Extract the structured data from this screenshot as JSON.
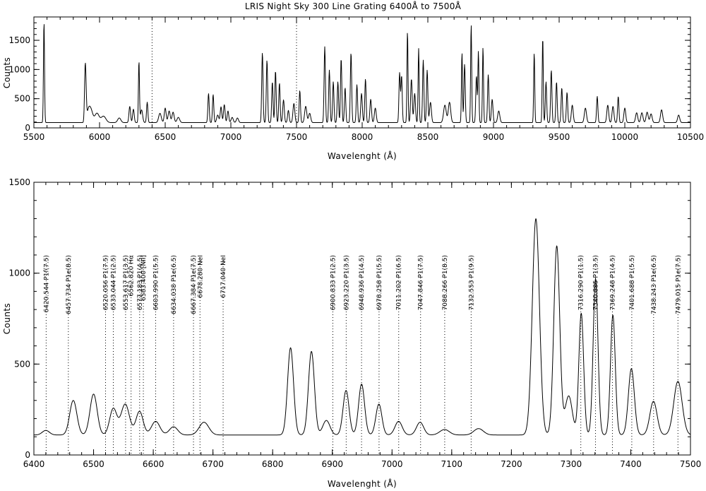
{
  "chart_data": [
    {
      "type": "line",
      "title": "LRIS Night Sky 300 Line Grating 6400Å to 7500Å",
      "xlabel": "Wavelenght (Å)",
      "ylabel": "Counts",
      "xlim": [
        5500,
        10500
      ],
      "ylim": [
        0,
        1900
      ],
      "xticks": [
        5500,
        6000,
        6500,
        7000,
        7500,
        8000,
        8500,
        9000,
        9500,
        10000,
        10500
      ],
      "yticks": [
        0,
        500,
        1000,
        1500
      ],
      "grid": false,
      "baseline": 90,
      "series_peaks": [
        [
          5577,
          1730,
          4
        ],
        [
          5890,
          780,
          5
        ],
        [
          5896,
          380,
          5
        ],
        [
          5915,
          180,
          12
        ],
        [
          5935,
          200,
          14
        ],
        [
          5980,
          160,
          16
        ],
        [
          6030,
          110,
          18
        ],
        [
          6150,
          80,
          12
        ],
        [
          6230,
          280,
          6
        ],
        [
          6258,
          230,
          6
        ],
        [
          6300,
          1050,
          4
        ],
        [
          6320,
          220,
          8
        ],
        [
          6363,
          350,
          5
        ],
        [
          6460,
          160,
          10
        ],
        [
          6500,
          250,
          7
        ],
        [
          6530,
          200,
          8
        ],
        [
          6560,
          180,
          8
        ],
        [
          6600,
          90,
          10
        ],
        [
          6830,
          500,
          5
        ],
        [
          6865,
          480,
          5
        ],
        [
          6900,
          130,
          8
        ],
        [
          6925,
          270,
          6
        ],
        [
          6950,
          310,
          6
        ],
        [
          6978,
          200,
          6
        ],
        [
          7010,
          90,
          8
        ],
        [
          7050,
          80,
          8
        ],
        [
          7240,
          1200,
          5
        ],
        [
          7275,
          1070,
          5
        ],
        [
          7316,
          700,
          5
        ],
        [
          7340,
          890,
          5
        ],
        [
          7370,
          680,
          5
        ],
        [
          7401,
          390,
          6
        ],
        [
          7438,
          210,
          6
        ],
        [
          7480,
          330,
          7
        ],
        [
          7525,
          550,
          5
        ],
        [
          7570,
          280,
          8
        ],
        [
          7600,
          160,
          8
        ],
        [
          7715,
          1300,
          5
        ],
        [
          7750,
          900,
          5
        ],
        [
          7780,
          700,
          5
        ],
        [
          7815,
          700,
          5
        ],
        [
          7840,
          1100,
          5
        ],
        [
          7870,
          600,
          5
        ],
        [
          7915,
          1200,
          5
        ],
        [
          7960,
          650,
          5
        ],
        [
          7995,
          500,
          6
        ],
        [
          8025,
          750,
          5
        ],
        [
          8065,
          400,
          6
        ],
        [
          8100,
          250,
          7
        ],
        [
          8285,
          850,
          5
        ],
        [
          8300,
          800,
          5
        ],
        [
          8345,
          1570,
          4
        ],
        [
          8375,
          750,
          6
        ],
        [
          8400,
          500,
          6
        ],
        [
          8430,
          1270,
          4
        ],
        [
          8465,
          1070,
          5
        ],
        [
          8495,
          900,
          5
        ],
        [
          8520,
          350,
          7
        ],
        [
          8630,
          300,
          10
        ],
        [
          8665,
          350,
          9
        ],
        [
          8760,
          1200,
          4
        ],
        [
          8780,
          1000,
          5
        ],
        [
          8830,
          1680,
          4
        ],
        [
          8870,
          800,
          5
        ],
        [
          8885,
          1220,
          4
        ],
        [
          8920,
          1290,
          4
        ],
        [
          8960,
          820,
          5
        ],
        [
          8990,
          400,
          6
        ],
        [
          9040,
          200,
          8
        ],
        [
          9310,
          1200,
          4
        ],
        [
          9375,
          1470,
          4
        ],
        [
          9400,
          700,
          5
        ],
        [
          9440,
          900,
          5
        ],
        [
          9480,
          700,
          5
        ],
        [
          9520,
          600,
          5
        ],
        [
          9560,
          520,
          5
        ],
        [
          9600,
          300,
          7
        ],
        [
          9700,
          250,
          8
        ],
        [
          9790,
          450,
          5
        ],
        [
          9870,
          300,
          7
        ],
        [
          9910,
          280,
          7
        ],
        [
          9950,
          450,
          5
        ],
        [
          10000,
          250,
          7
        ],
        [
          10090,
          170,
          8
        ],
        [
          10130,
          170,
          8
        ],
        [
          10170,
          180,
          8
        ],
        [
          10200,
          150,
          8
        ],
        [
          10280,
          220,
          8
        ],
        [
          10410,
          130,
          8
        ]
      ],
      "markers": [
        6400,
        7500
      ]
    },
    {
      "type": "line",
      "xlabel": "Wavelenght (Å)",
      "ylabel": "Counts",
      "xlim": [
        6400,
        7500
      ],
      "ylim": [
        0,
        1500
      ],
      "xticks": [
        6400,
        6500,
        6600,
        6700,
        6800,
        6900,
        7000,
        7100,
        7200,
        7300,
        7400,
        7500
      ],
      "yticks": [
        0,
        500,
        1000,
        1500
      ],
      "grid": false,
      "baseline": 110,
      "series_peaks": [
        [
          6420,
          25,
          6
        ],
        [
          6466,
          190,
          6
        ],
        [
          6500,
          225,
          6
        ],
        [
          6533,
          145,
          6
        ],
        [
          6553,
          170,
          7
        ],
        [
          6577,
          130,
          6
        ],
        [
          6604,
          75,
          7
        ],
        [
          6634,
          45,
          7
        ],
        [
          6685,
          70,
          8
        ],
        [
          6830,
          480,
          5
        ],
        [
          6865,
          460,
          5
        ],
        [
          6890,
          80,
          6
        ],
        [
          6923,
          245,
          5
        ],
        [
          6949,
          280,
          5
        ],
        [
          6978,
          170,
          5
        ],
        [
          7011,
          75,
          6
        ],
        [
          7047,
          70,
          6
        ],
        [
          7088,
          30,
          8
        ],
        [
          7145,
          35,
          8
        ],
        [
          7241,
          1190,
          6
        ],
        [
          7276,
          1040,
          5
        ],
        [
          7296,
          215,
          6
        ],
        [
          7317,
          670,
          4
        ],
        [
          7341,
          860,
          4
        ],
        [
          7370,
          660,
          4
        ],
        [
          7401,
          365,
          5
        ],
        [
          7438,
          185,
          6
        ],
        [
          7479,
          295,
          7
        ]
      ],
      "annotations": [
        {
          "wavelength": 6420.544,
          "label": "6420.544 P1f(7.5)"
        },
        {
          "wavelength": 6457.734,
          "label": "6457.734 P1e(8.5)"
        },
        {
          "wavelength": 6520.056,
          "label": "6520.056 P1(7.5)"
        },
        {
          "wavelength": 6533.044,
          "label": "6533.044 P1(2.5)"
        },
        {
          "wavelength": 6553.617,
          "label": "6553.617 P1(3.5)"
        },
        {
          "wavelength": 6562.82,
          "label": "6562.820 Hα"
        },
        {
          "wavelength": 6577.183,
          "label": "6577.183 P1(4.5)"
        },
        {
          "wavelength": 6583.4,
          "label": "6583.400 [NII]"
        },
        {
          "wavelength": 6603.99,
          "label": "6603.990 P1(5.5)"
        },
        {
          "wavelength": 6634.038,
          "label": "6634.038 P1e(6.5)"
        },
        {
          "wavelength": 6667.384,
          "label": "6667.384 P1e(7.5)"
        },
        {
          "wavelength": 6678.28,
          "label": "6678.280 NeI"
        },
        {
          "wavelength": 6717.04,
          "label": "6717.040 NeI"
        },
        {
          "wavelength": 6900.833,
          "label": "6900.833 P1(2.5)"
        },
        {
          "wavelength": 6923.22,
          "label": "6923.220 P1(3.5)"
        },
        {
          "wavelength": 6948.936,
          "label": "6948.936 P1(4.5)"
        },
        {
          "wavelength": 6978.258,
          "label": "6978.258 P1(5.5)"
        },
        {
          "wavelength": 7011.202,
          "label": "7011.202 P1(6.5)"
        },
        {
          "wavelength": 7047.846,
          "label": "7047.846 P1(7.5)"
        },
        {
          "wavelength": 7088.266,
          "label": "7088.266 P1(8.5)"
        },
        {
          "wavelength": 7132.553,
          "label": "7132.553 P1(9.5)"
        },
        {
          "wavelength": 7316.29,
          "label": "7316.290 P1(1.5)"
        },
        {
          "wavelength": 7340.885,
          "label": "7340.885 P1(3.5)"
        },
        {
          "wavelength": 7369.248,
          "label": "7369.248 P1(4.5)"
        },
        {
          "wavelength": 7401.688,
          "label": "7401.688 P1(5.5)"
        },
        {
          "wavelength": 7438.243,
          "label": "7438.243 P1e(6.5)"
        },
        {
          "wavelength": 7479.015,
          "label": "7479.015 P1e(7.5)"
        }
      ]
    }
  ]
}
